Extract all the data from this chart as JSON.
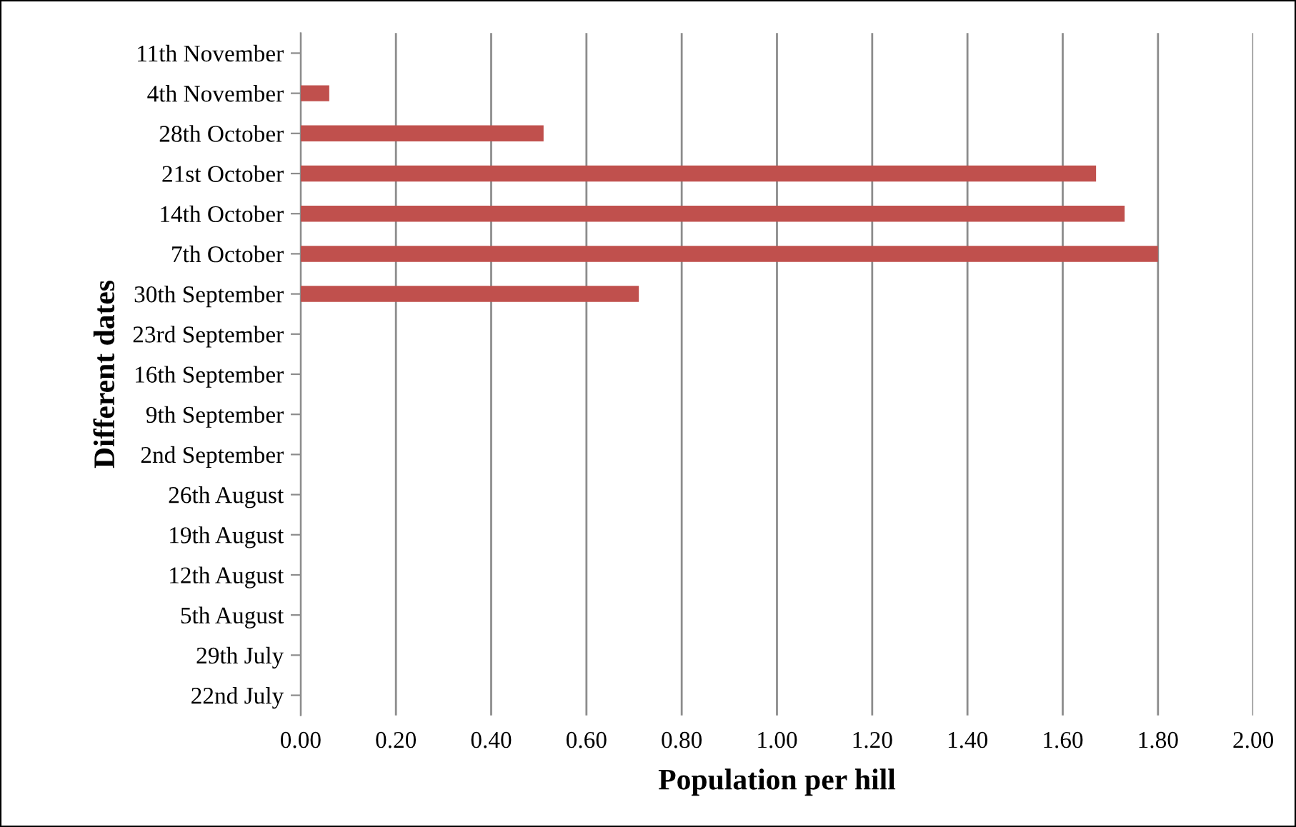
{
  "chart_data": {
    "type": "bar",
    "orientation": "horizontal",
    "xlabel": "Population per hill",
    "ylabel": "Different dates",
    "categories": [
      "11th November",
      "4th November",
      "28th October",
      "21st October",
      "14th October",
      "7th October",
      "30th September",
      "23rd September",
      "16th September",
      "9th September",
      "2nd September",
      "26th August",
      "19th August",
      "12th August",
      "5th August",
      "29th July",
      "22nd July"
    ],
    "values": [
      0,
      0.06,
      0.51,
      1.67,
      1.73,
      1.8,
      0.71,
      0,
      0,
      0,
      0,
      0,
      0,
      0,
      0,
      0,
      0
    ],
    "color": "#c0504d",
    "xlim": [
      0,
      2
    ],
    "xticks": [
      {
        "value": 0,
        "label": "0.00"
      },
      {
        "value": 0.2,
        "label": "0.20"
      },
      {
        "value": 0.4,
        "label": "0.40"
      },
      {
        "value": 0.6,
        "label": "0.60"
      },
      {
        "value": 0.8,
        "label": "0.80"
      },
      {
        "value": 1.0,
        "label": "1.00"
      },
      {
        "value": 1.2,
        "label": "1.20"
      },
      {
        "value": 1.4,
        "label": "1.40"
      },
      {
        "value": 1.6,
        "label": "1.60"
      },
      {
        "value": 1.8,
        "label": "1.80"
      },
      {
        "value": 2.0,
        "label": "2.00"
      }
    ],
    "grid": "x",
    "legend": false
  }
}
